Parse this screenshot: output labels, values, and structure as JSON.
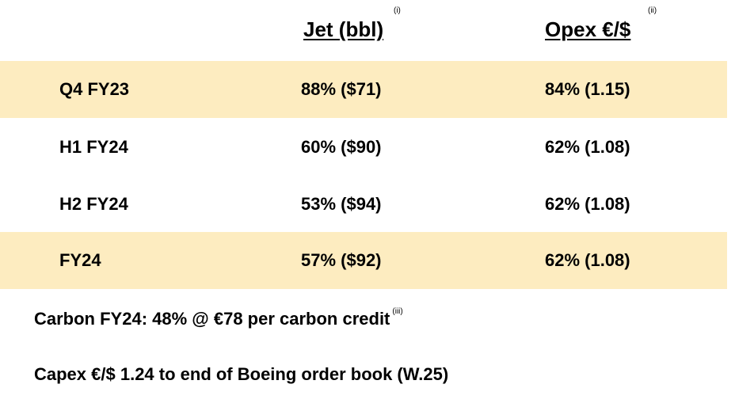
{
  "header": {
    "jet_label": "Jet (bbl)",
    "jet_note": "(i)",
    "opex_label": "Opex €/$",
    "opex_note": "(ii)"
  },
  "rows": [
    {
      "period": "Q4 FY23",
      "jet": "88% ($71)",
      "opex": "84% (1.15)"
    },
    {
      "period": "H1 FY24",
      "jet": "60% ($90)",
      "opex": "62% (1.08)"
    },
    {
      "period": "H2 FY24",
      "jet": "53% ($94)",
      "opex": "62% (1.08)"
    },
    {
      "period": "FY24",
      "jet": "57% ($92)",
      "opex": "62% (1.08)"
    }
  ],
  "footer": {
    "carbon": "Carbon FY24: 48% @ €78 per carbon credit",
    "carbon_note": "(iii)",
    "capex": "Capex €/$ 1.24 to end of Boeing order book (W.25)"
  },
  "colors": {
    "shaded_row": "#fdecc0"
  }
}
